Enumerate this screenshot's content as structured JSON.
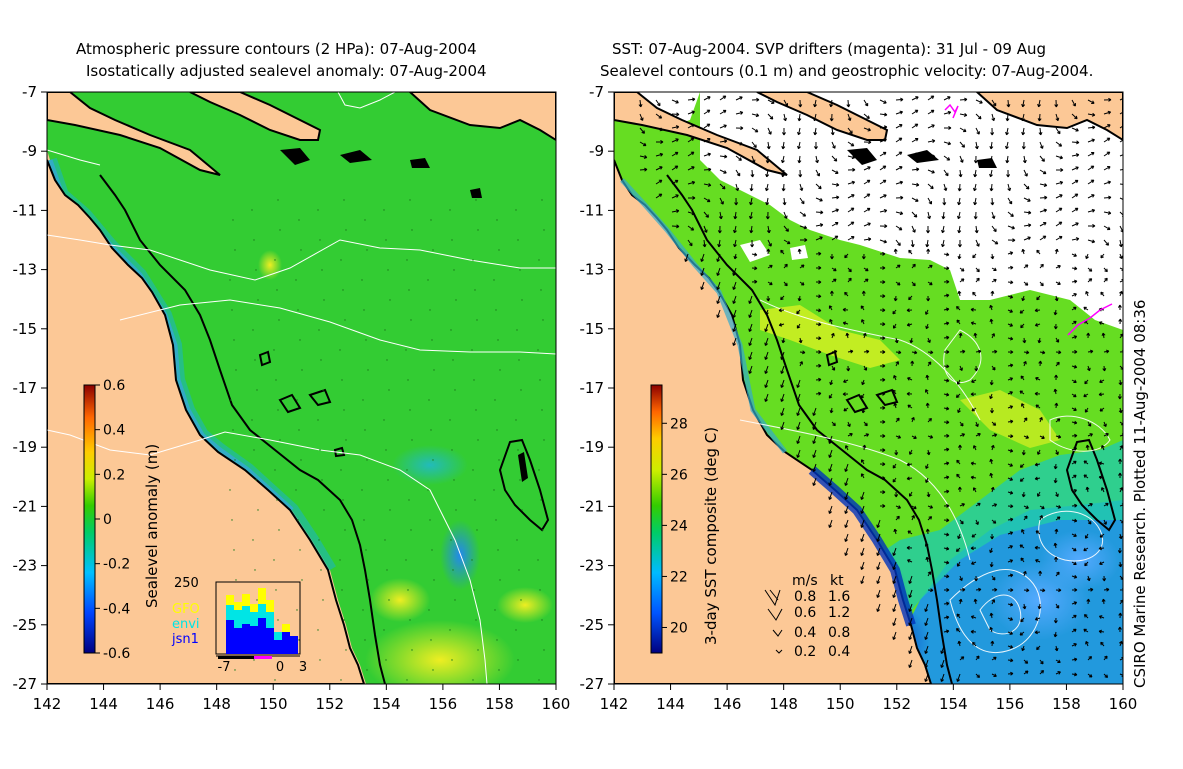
{
  "left_panel": {
    "title_line1": "Atmospheric pressure contours (2 HPa): 07-Aug-2004",
    "title_line2": "Isostatically adjusted sealevel anomaly: 07-Aug-2004",
    "colorbar": {
      "label": "Sealevel anomaly (m)",
      "ticks": [
        "0.6",
        "0.4",
        "0.2",
        "0",
        "-0.2",
        "-0.4",
        "-0.6"
      ],
      "range": [
        -0.6,
        0.6
      ]
    },
    "histogram": {
      "ymax_label": "250",
      "xticks": [
        "-7",
        "0",
        "3"
      ],
      "legend": [
        {
          "label": "GFO",
          "color": "#ffff00"
        },
        {
          "label": "envi",
          "color": "#00e5e5"
        },
        {
          "label": "jsn1",
          "color": "#0000ff"
        }
      ]
    }
  },
  "right_panel": {
    "title_line1": "SST: 07-Aug-2004. SVP drifters (magenta): 31 Jul - 09 Aug",
    "title_line2": "Sealevel contours (0.1 m) and geostrophic velocity: 07-Aug-2004.",
    "colorbar": {
      "label": "3-day SST composite (deg C)",
      "ticks": [
        "28",
        "26",
        "24",
        "22",
        "20"
      ],
      "range": [
        19,
        29.5
      ]
    },
    "velocity_legend": {
      "headers": [
        "m/s",
        "kt"
      ],
      "rows": [
        [
          "0.8",
          "1.6"
        ],
        [
          "0.6",
          "1.2"
        ],
        [
          "0.4",
          "0.8"
        ],
        [
          "0.2",
          "0.4"
        ]
      ]
    },
    "side_credit": "CSIRO Marine Research. Plotted 11-Aug-2004 08:36"
  },
  "axes": {
    "x_ticks": [
      "142",
      "144",
      "146",
      "148",
      "150",
      "152",
      "154",
      "156",
      "158",
      "160"
    ],
    "y_ticks": [
      "-7",
      "-9",
      "-11",
      "-13",
      "-15",
      "-17",
      "-19",
      "-21",
      "-23",
      "-25",
      "-27"
    ],
    "lon_range": [
      142,
      160
    ],
    "lat_range": [
      -27,
      -7
    ]
  },
  "colors": {
    "land": "#fcc896",
    "ocean_left": "#33cc33",
    "ocean_right_warm": "#66dd22",
    "cold_water": "#0044cc",
    "cloud": "#ffffff",
    "drifter": "#ff00ff"
  }
}
